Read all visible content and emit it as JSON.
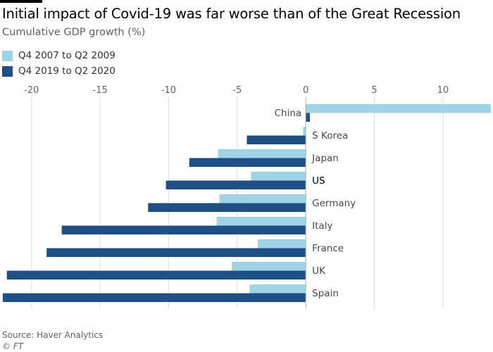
{
  "header": {
    "title": "Initial impact of Covid-19 was far worse than of the Great Recession",
    "subtitle": "Cumulative GDP growth (%)"
  },
  "footer": {
    "source": "Source: Haver Analytics",
    "credit": "© FT"
  },
  "colors": {
    "series_2009": "#9dd5e6",
    "series_2020": "#1f4f87",
    "gridline": "#e6d9ce",
    "zero_line": "#b3a9a1",
    "tick_text": "#66605c",
    "label_text": "#4d4845",
    "label_highlight": "#000000"
  },
  "chart_data": {
    "type": "bar",
    "orientation": "horizontal",
    "title": "Initial impact of Covid-19 was far worse than of the Great Recession",
    "subtitle": "Cumulative GDP growth (%)",
    "xlabel": "",
    "ylabel": "",
    "xlim": [
      -22.3,
      13.5
    ],
    "xticks": [
      -20,
      -15,
      -10,
      -5,
      0,
      5,
      10
    ],
    "grid": true,
    "legend_position": "top-left",
    "categories": [
      "China",
      "S Korea",
      "Japan",
      "US",
      "Germany",
      "Italy",
      "France",
      "UK",
      "Spain"
    ],
    "highlight_category": "US",
    "series": [
      {
        "name": "Q4 2007 to Q2 2009",
        "values": [
          13.5,
          -0.2,
          -6.4,
          -4.0,
          -6.3,
          -6.5,
          -3.5,
          -5.4,
          -4.1
        ]
      },
      {
        "name": "Q4 2019 to Q2 2020",
        "values": [
          0.3,
          -4.3,
          -8.5,
          -10.2,
          -11.5,
          -17.8,
          -18.9,
          -21.8,
          -22.1
        ]
      }
    ],
    "source": "Source: Haver Analytics"
  }
}
